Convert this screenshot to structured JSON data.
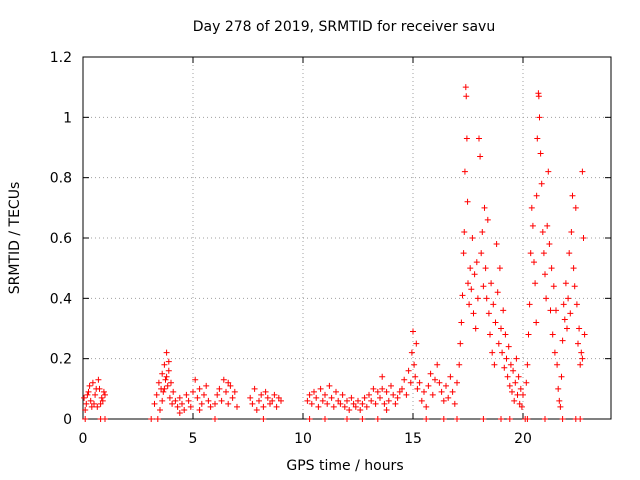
{
  "colors": {
    "series": "#ff0000",
    "axis": "#000000",
    "grid": "#a0a0a0",
    "background": "#ffffff"
  },
  "chart_data": {
    "type": "scatter",
    "title": "Day 278 of 2019, SRMTID for receiver savu",
    "xlabel": "GPS time / hours",
    "ylabel": "SRMTID / TECUs",
    "xlim": [
      0,
      24
    ],
    "ylim": [
      0,
      1.2
    ],
    "grid": true,
    "marker": "+",
    "xticks": [
      0,
      5,
      10,
      15,
      20
    ],
    "xtick_labels": [
      "0",
      "5",
      "10",
      "15",
      "20"
    ],
    "yticks": [
      0,
      0.2,
      0.4,
      0.6,
      0.8,
      1,
      1.2
    ],
    "ytick_labels": [
      "0",
      "0.2",
      "0.4",
      "0.6",
      "0.8",
      "1",
      "1.2"
    ],
    "series": [
      {
        "name": "SRMTID",
        "points": [
          [
            0.05,
            0.07
          ],
          [
            0.15,
            0.05
          ],
          [
            0.25,
            0.09
          ],
          [
            0.35,
            0.06
          ],
          [
            0.45,
            0.12
          ],
          [
            0.55,
            0.08
          ],
          [
            0.65,
            0.04
          ],
          [
            0.75,
            0.1
          ],
          [
            0.85,
            0.07
          ],
          [
            0.95,
            0.09
          ],
          [
            0.1,
            0.03
          ],
          [
            0.3,
            0.11
          ],
          [
            0.5,
            0.05
          ],
          [
            0.7,
            0.13
          ],
          [
            0.9,
            0.06
          ],
          [
            0.2,
            0.08
          ],
          [
            0.4,
            0.04
          ],
          [
            0.6,
            0.1
          ],
          [
            0.8,
            0.05
          ],
          [
            1.0,
            0.08
          ],
          [
            0.1,
            0.0
          ],
          [
            0.8,
            0.0
          ],
          [
            1.0,
            0.0
          ],
          [
            3.1,
            0.0
          ],
          [
            3.25,
            0.05
          ],
          [
            3.35,
            0.08
          ],
          [
            3.45,
            0.12
          ],
          [
            3.5,
            0.03
          ],
          [
            3.55,
            0.1
          ],
          [
            3.6,
            0.15
          ],
          [
            3.65,
            0.09
          ],
          [
            3.7,
            0.18
          ],
          [
            3.75,
            0.13
          ],
          [
            3.8,
            0.22
          ],
          [
            3.85,
            0.11
          ],
          [
            3.9,
            0.16
          ],
          [
            3.95,
            0.07
          ],
          [
            4.0,
            0.12
          ],
          [
            4.05,
            0.05
          ],
          [
            4.1,
            0.09
          ],
          [
            3.6,
            0.06
          ],
          [
            3.7,
            0.1
          ],
          [
            3.8,
            0.14
          ],
          [
            3.9,
            0.19
          ],
          [
            3.4,
            0.0
          ],
          [
            4.2,
            0.06
          ],
          [
            4.3,
            0.04
          ],
          [
            4.4,
            0.07
          ],
          [
            4.5,
            0.05
          ],
          [
            4.6,
            0.03
          ],
          [
            4.7,
            0.08
          ],
          [
            4.8,
            0.06
          ],
          [
            4.9,
            0.04
          ],
          [
            5.0,
            0.09
          ],
          [
            4.4,
            0.02
          ],
          [
            5.1,
            0.13
          ],
          [
            5.2,
            0.07
          ],
          [
            5.3,
            0.1
          ],
          [
            5.4,
            0.05
          ],
          [
            5.5,
            0.08
          ],
          [
            5.6,
            0.11
          ],
          [
            5.7,
            0.06
          ],
          [
            5.8,
            0.04
          ],
          [
            5.3,
            0.03
          ],
          [
            6.0,
            0.0
          ],
          [
            6.1,
            0.08
          ],
          [
            6.2,
            0.1
          ],
          [
            6.3,
            0.06
          ],
          [
            6.4,
            0.13
          ],
          [
            6.5,
            0.09
          ],
          [
            6.6,
            0.05
          ],
          [
            6.7,
            0.11
          ],
          [
            6.8,
            0.07
          ],
          [
            6.9,
            0.09
          ],
          [
            7.0,
            0.04
          ],
          [
            6.6,
            0.12
          ],
          [
            6.0,
            0.05
          ],
          [
            7.6,
            0.07
          ],
          [
            7.7,
            0.05
          ],
          [
            7.8,
            0.1
          ],
          [
            7.9,
            0.03
          ],
          [
            8.0,
            0.06
          ],
          [
            8.1,
            0.08
          ],
          [
            8.2,
            0.04
          ],
          [
            8.3,
            0.09
          ],
          [
            8.4,
            0.07
          ],
          [
            8.5,
            0.05
          ],
          [
            8.6,
            0.06
          ],
          [
            8.7,
            0.08
          ],
          [
            8.8,
            0.04
          ],
          [
            8.9,
            0.07
          ],
          [
            9.0,
            0.06
          ],
          [
            8.2,
            0.0
          ],
          [
            10.2,
            0.06
          ],
          [
            10.3,
            0.08
          ],
          [
            10.4,
            0.05
          ],
          [
            10.5,
            0.09
          ],
          [
            10.6,
            0.07
          ],
          [
            10.7,
            0.04
          ],
          [
            10.8,
            0.1
          ],
          [
            10.9,
            0.06
          ],
          [
            11.0,
            0.08
          ],
          [
            11.1,
            0.05
          ],
          [
            11.2,
            0.11
          ],
          [
            11.3,
            0.07
          ],
          [
            11.4,
            0.04
          ],
          [
            11.5,
            0.09
          ],
          [
            11.6,
            0.06
          ],
          [
            11.7,
            0.05
          ],
          [
            11.8,
            0.08
          ],
          [
            11.9,
            0.04
          ],
          [
            12.0,
            0.06
          ],
          [
            12.1,
            0.03
          ],
          [
            12.2,
            0.07
          ],
          [
            12.3,
            0.05
          ],
          [
            12.4,
            0.04
          ],
          [
            12.5,
            0.06
          ],
          [
            12.6,
            0.03
          ],
          [
            12.7,
            0.05
          ],
          [
            12.8,
            0.07
          ],
          [
            12.9,
            0.04
          ],
          [
            13.0,
            0.08
          ],
          [
            13.1,
            0.06
          ],
          [
            13.2,
            0.1
          ],
          [
            13.3,
            0.05
          ],
          [
            13.4,
            0.09
          ],
          [
            10.3,
            0.0
          ],
          [
            11.0,
            0.0
          ],
          [
            12.0,
            0.0
          ],
          [
            12.7,
            0.0
          ],
          [
            13.4,
            0.0
          ],
          [
            13.5,
            0.07
          ],
          [
            13.6,
            0.1
          ],
          [
            13.7,
            0.05
          ],
          [
            13.8,
            0.09
          ],
          [
            13.9,
            0.06
          ],
          [
            14.0,
            0.11
          ],
          [
            14.1,
            0.08
          ],
          [
            14.2,
            0.05
          ],
          [
            14.3,
            0.07
          ],
          [
            14.4,
            0.09
          ],
          [
            13.6,
            0.14
          ],
          [
            13.8,
            0.03
          ],
          [
            14.5,
            0.1
          ],
          [
            14.6,
            0.13
          ],
          [
            14.7,
            0.08
          ],
          [
            14.8,
            0.16
          ],
          [
            14.9,
            0.12
          ],
          [
            14.95,
            0.22
          ],
          [
            15.0,
            0.29
          ],
          [
            15.05,
            0.18
          ],
          [
            15.1,
            0.14
          ],
          [
            15.15,
            0.25
          ],
          [
            15.2,
            0.1
          ],
          [
            15.3,
            0.12
          ],
          [
            15.4,
            0.06
          ],
          [
            15.5,
            0.09
          ],
          [
            15.6,
            0.04
          ],
          [
            15.7,
            0.11
          ],
          [
            15.8,
            0.15
          ],
          [
            15.9,
            0.08
          ],
          [
            16.0,
            0.13
          ],
          [
            16.1,
            0.18
          ],
          [
            16.2,
            0.12
          ],
          [
            16.3,
            0.09
          ],
          [
            16.4,
            0.06
          ],
          [
            16.5,
            0.11
          ],
          [
            16.6,
            0.07
          ],
          [
            16.7,
            0.14
          ],
          [
            16.8,
            0.09
          ],
          [
            16.9,
            0.05
          ],
          [
            17.0,
            0.12
          ],
          [
            15.6,
            0.0
          ],
          [
            16.4,
            0.0
          ],
          [
            17.0,
            0.0
          ],
          [
            17.1,
            0.18
          ],
          [
            17.15,
            0.25
          ],
          [
            17.2,
            0.32
          ],
          [
            17.25,
            0.41
          ],
          [
            17.3,
            0.55
          ],
          [
            17.33,
            0.62
          ],
          [
            17.36,
            0.82
          ],
          [
            17.4,
            1.1
          ],
          [
            17.42,
            1.07
          ],
          [
            17.45,
            0.93
          ],
          [
            17.48,
            0.72
          ],
          [
            17.5,
            0.45
          ],
          [
            17.55,
            0.38
          ],
          [
            17.6,
            0.5
          ],
          [
            17.65,
            0.43
          ],
          [
            17.7,
            0.6
          ],
          [
            17.75,
            0.35
          ],
          [
            17.8,
            0.48
          ],
          [
            17.85,
            0.3
          ],
          [
            17.9,
            0.52
          ],
          [
            17.95,
            0.4
          ],
          [
            18.0,
            0.93
          ],
          [
            18.05,
            0.87
          ],
          [
            18.1,
            0.55
          ],
          [
            18.15,
            0.62
          ],
          [
            18.2,
            0.44
          ],
          [
            18.25,
            0.7
          ],
          [
            18.3,
            0.5
          ],
          [
            18.35,
            0.4
          ],
          [
            18.4,
            0.66
          ],
          [
            18.45,
            0.35
          ],
          [
            18.5,
            0.28
          ],
          [
            18.55,
            0.45
          ],
          [
            18.6,
            0.22
          ],
          [
            18.65,
            0.38
          ],
          [
            18.7,
            0.18
          ],
          [
            18.75,
            0.32
          ],
          [
            18.8,
            0.58
          ],
          [
            18.85,
            0.42
          ],
          [
            18.9,
            0.25
          ],
          [
            18.95,
            0.5
          ],
          [
            19.0,
            0.3
          ],
          [
            19.05,
            0.22
          ],
          [
            19.1,
            0.36
          ],
          [
            19.15,
            0.17
          ],
          [
            19.2,
            0.28
          ],
          [
            19.25,
            0.2
          ],
          [
            19.3,
            0.14
          ],
          [
            19.35,
            0.24
          ],
          [
            19.4,
            0.11
          ],
          [
            19.45,
            0.18
          ],
          [
            19.5,
            0.09
          ],
          [
            19.55,
            0.16
          ],
          [
            19.6,
            0.06
          ],
          [
            19.65,
            0.12
          ],
          [
            19.7,
            0.2
          ],
          [
            19.75,
            0.08
          ],
          [
            19.8,
            0.14
          ],
          [
            19.85,
            0.05
          ],
          [
            19.9,
            0.1
          ],
          [
            19.95,
            0.04
          ],
          [
            20.0,
            0.08
          ],
          [
            18.2,
            0.0
          ],
          [
            19.0,
            0.0
          ],
          [
            19.4,
            0.0
          ],
          [
            20.1,
            0.0
          ],
          [
            20.15,
            0.12
          ],
          [
            20.2,
            0.18
          ],
          [
            20.25,
            0.28
          ],
          [
            20.3,
            0.38
          ],
          [
            20.35,
            0.55
          ],
          [
            20.4,
            0.7
          ],
          [
            20.45,
            0.64
          ],
          [
            20.5,
            0.52
          ],
          [
            20.55,
            0.45
          ],
          [
            20.6,
            0.32
          ],
          [
            20.62,
            0.74
          ],
          [
            20.65,
            0.93
          ],
          [
            20.7,
            1.08
          ],
          [
            20.72,
            1.07
          ],
          [
            20.75,
            1.0
          ],
          [
            20.8,
            0.88
          ],
          [
            20.85,
            0.78
          ],
          [
            20.9,
            0.62
          ],
          [
            20.95,
            0.55
          ],
          [
            21.0,
            0.48
          ],
          [
            21.05,
            0.4
          ],
          [
            21.1,
            0.64
          ],
          [
            21.15,
            0.82
          ],
          [
            21.2,
            0.58
          ],
          [
            21.25,
            0.36
          ],
          [
            21.3,
            0.5
          ],
          [
            21.35,
            0.28
          ],
          [
            21.4,
            0.44
          ],
          [
            21.45,
            0.22
          ],
          [
            21.5,
            0.36
          ],
          [
            21.55,
            0.18
          ],
          [
            21.6,
            0.1
          ],
          [
            21.65,
            0.06
          ],
          [
            21.7,
            0.04
          ],
          [
            21.75,
            0.14
          ],
          [
            21.8,
            0.26
          ],
          [
            21.85,
            0.38
          ],
          [
            21.9,
            0.33
          ],
          [
            21.95,
            0.45
          ],
          [
            22.0,
            0.3
          ],
          [
            22.05,
            0.4
          ],
          [
            22.1,
            0.55
          ],
          [
            22.15,
            0.35
          ],
          [
            22.2,
            0.62
          ],
          [
            22.25,
            0.74
          ],
          [
            22.3,
            0.5
          ],
          [
            22.35,
            0.44
          ],
          [
            22.4,
            0.7
          ],
          [
            22.45,
            0.38
          ],
          [
            22.5,
            0.25
          ],
          [
            22.55,
            0.3
          ],
          [
            22.6,
            0.18
          ],
          [
            22.65,
            0.22
          ],
          [
            22.7,
            0.82
          ],
          [
            22.75,
            0.6
          ],
          [
            22.8,
            0.28
          ],
          [
            22.7,
            0.2
          ],
          [
            20.2,
            0.0
          ],
          [
            21.0,
            0.0
          ],
          [
            21.8,
            0.0
          ],
          [
            22.4,
            0.0
          ],
          [
            22.6,
            0.0
          ]
        ]
      }
    ]
  }
}
